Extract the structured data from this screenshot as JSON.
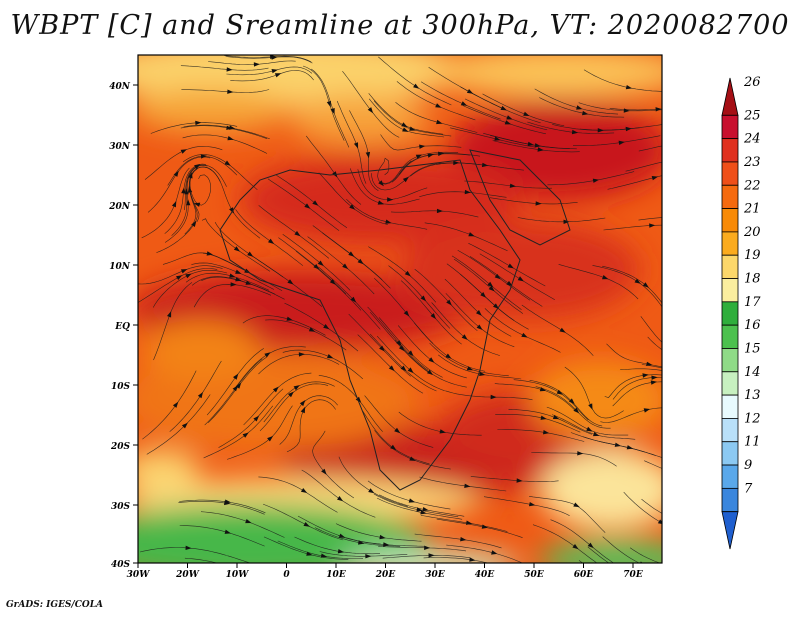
{
  "title": "WBPT [C] and Sreamline at 300hPa, VT: 2020082700",
  "footer": "GrADS: IGES/COLA",
  "lat_labels": [
    "40N",
    "30N",
    "20N",
    "10N",
    "EQ",
    "10S",
    "20S",
    "30S",
    "40S"
  ],
  "lon_labels": [
    "30W",
    "20W",
    "10W",
    "0",
    "10E",
    "20E",
    "30E",
    "40E",
    "50E",
    "60E",
    "70E"
  ],
  "colorbar": {
    "labels": [
      "26",
      "25",
      "24",
      "23",
      "22",
      "21",
      "20",
      "19",
      "18",
      "17",
      "16",
      "15",
      "14",
      "13",
      "12",
      "11",
      "9",
      "7"
    ],
    "colors": [
      "#a50f15",
      "#c8102e",
      "#e0301e",
      "#ef4f19",
      "#f56a0f",
      "#f88a06",
      "#fbab1e",
      "#fcd76a",
      "#fbee9f",
      "#2fae3c",
      "#4cc14e",
      "#8fdb87",
      "#c7f0c0",
      "#e8fafe",
      "#b9e0f9",
      "#8cc9f2",
      "#5aa8ea",
      "#3a86dd",
      "#1f5fcf"
    ]
  }
}
